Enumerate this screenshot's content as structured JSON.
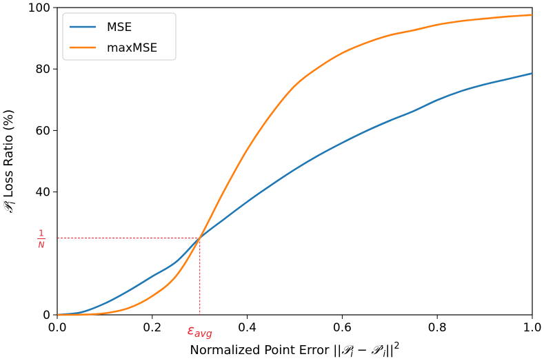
{
  "chart_data": {
    "type": "line",
    "title": "",
    "xlabel_prefix": "Normalized Point Error ||",
    "xlabel_math_a": "𝒫",
    "xlabel_sub_a": "i",
    "xlabel_minus": " − ",
    "xlabel_math_b": "𝒫′",
    "xlabel_sub_b": "i",
    "xlabel_suffix": "||",
    "xlabel_sup": "2",
    "ylabel_math": "𝒫",
    "ylabel_sub": "i",
    "ylabel_rest": " Loss Ratio (%)",
    "xlim": [
      0.0,
      1.0
    ],
    "ylim": [
      0,
      100
    ],
    "x_ticks": [
      "0.0",
      "0.2",
      "0.4",
      "0.6",
      "0.8",
      "1.0"
    ],
    "x_tick_values": [
      0.0,
      0.2,
      0.4,
      0.6,
      0.8,
      1.0
    ],
    "y_ticks": [
      "0",
      "40",
      "60",
      "80",
      "100"
    ],
    "y_tick_values": [
      0,
      40,
      60,
      80,
      100
    ],
    "grid": false,
    "legend_position": "top-left",
    "series": [
      {
        "name": "MSE",
        "color": "#1f77b4",
        "x": [
          0.0,
          0.05,
          0.1,
          0.15,
          0.2,
          0.25,
          0.3,
          0.35,
          0.4,
          0.45,
          0.5,
          0.55,
          0.6,
          0.65,
          0.7,
          0.75,
          0.8,
          0.85,
          0.9,
          0.95,
          1.0
        ],
        "y": [
          0.0,
          0.8,
          3.7,
          7.8,
          12.5,
          17.2,
          25.0,
          31.0,
          36.8,
          42.2,
          47.3,
          51.9,
          56.0,
          59.8,
          63.2,
          66.3,
          69.9,
          72.8,
          75.0,
          76.8,
          78.6
        ]
      },
      {
        "name": "maxMSE",
        "color": "#ff7f0e",
        "x": [
          0.0,
          0.05,
          0.1,
          0.15,
          0.2,
          0.25,
          0.3,
          0.35,
          0.4,
          0.45,
          0.5,
          0.55,
          0.6,
          0.65,
          0.7,
          0.75,
          0.8,
          0.85,
          0.9,
          0.95,
          1.0
        ],
        "y": [
          0.0,
          0.05,
          0.5,
          2.2,
          6.1,
          12.6,
          25.0,
          40.0,
          53.8,
          65.2,
          74.5,
          80.5,
          85.2,
          88.5,
          91.0,
          92.6,
          94.4,
          95.6,
          96.4,
          97.1,
          97.6
        ]
      }
    ],
    "annotations": {
      "x_marker_value": 0.3,
      "x_marker_label": "ε",
      "x_marker_sub": "avg",
      "y_marker_value": 25,
      "y_marker_num": "1",
      "y_marker_den": "N",
      "color": "#e8202a"
    }
  }
}
